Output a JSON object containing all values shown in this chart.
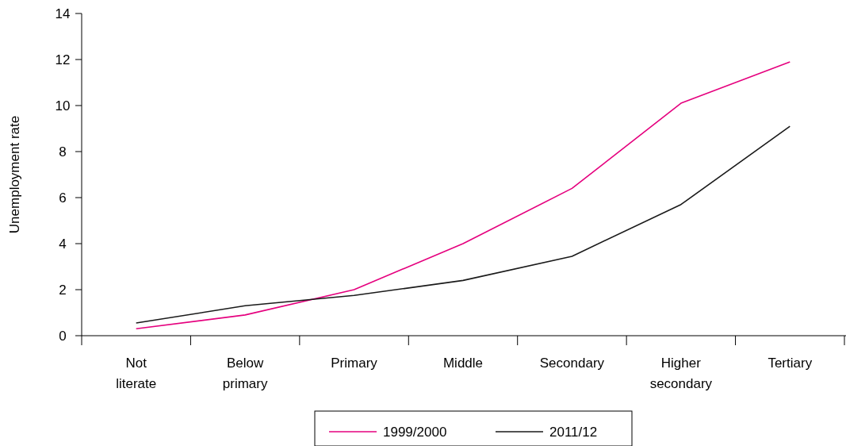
{
  "chart_data": {
    "type": "line",
    "ylabel": "Unemployment rate",
    "categories": [
      "Not\nliterate",
      "Below\nprimary",
      "Primary",
      "Middle",
      "Secondary",
      "Higher\nsecondary",
      "Tertiary"
    ],
    "series": [
      {
        "name": "1999/2000",
        "color": "#e5007e",
        "values": [
          0.3,
          0.9,
          2.0,
          4.0,
          6.4,
          10.1,
          11.9
        ]
      },
      {
        "name": "2011/12",
        "color": "#1a1a1a",
        "values": [
          0.55,
          1.3,
          1.75,
          2.4,
          3.45,
          5.7,
          9.1
        ]
      }
    ],
    "ylim": [
      0,
      14
    ],
    "yticks": [
      0,
      2,
      4,
      6,
      8,
      10,
      12,
      14
    ],
    "legend": "bottom",
    "grid": false,
    "marker": "none",
    "line_style": "solid"
  }
}
